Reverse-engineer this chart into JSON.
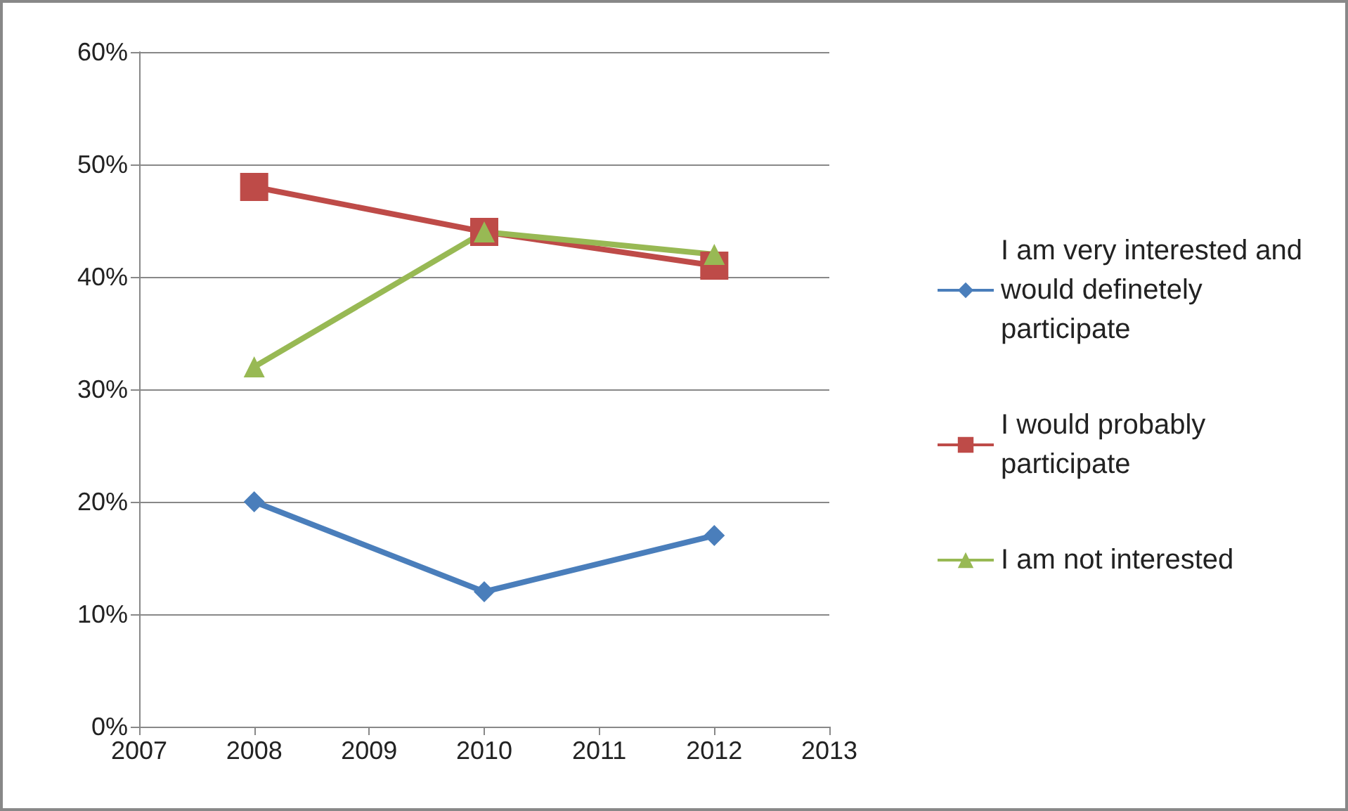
{
  "chart_data": {
    "type": "line",
    "x": [
      2008,
      2010,
      2012
    ],
    "series": [
      {
        "name": "I am very interested and would definetely participate",
        "color": "#4a7ebb",
        "values": [
          20,
          12,
          17
        ],
        "marker": "diamond"
      },
      {
        "name": "I would probably participate",
        "color": "#be4b48",
        "values": [
          48,
          44,
          41
        ],
        "marker": "square"
      },
      {
        "name": "I am not interested",
        "color": "#98b954",
        "values": [
          32,
          44,
          42
        ],
        "marker": "triangle"
      }
    ],
    "xlim": [
      2007,
      2013
    ],
    "xticks": [
      2007,
      2008,
      2009,
      2010,
      2011,
      2012,
      2013
    ],
    "ylim": [
      0,
      60
    ],
    "yticks": [
      {
        "value": 0,
        "label": "0%"
      },
      {
        "value": 10,
        "label": "10%"
      },
      {
        "value": 20,
        "label": "20%"
      },
      {
        "value": 30,
        "label": "30%"
      },
      {
        "value": 40,
        "label": "40%"
      },
      {
        "value": 50,
        "label": "50%"
      },
      {
        "value": 60,
        "label": "60%"
      }
    ],
    "grid": "y",
    "legend": "right",
    "line_style": "solid"
  }
}
